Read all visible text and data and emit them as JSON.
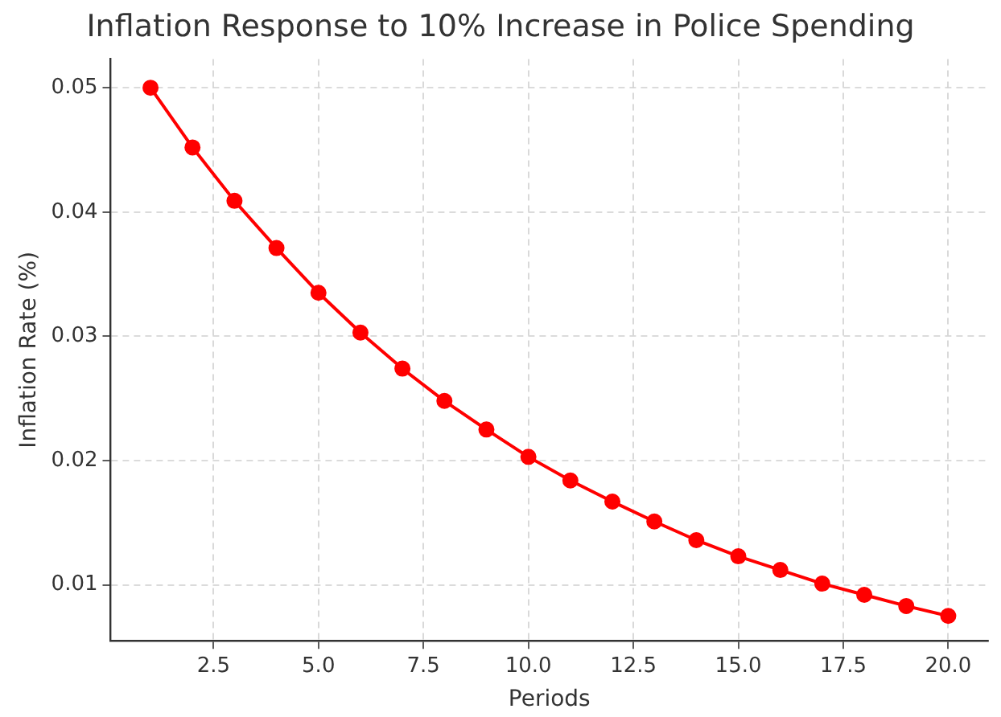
{
  "chart_data": {
    "type": "line",
    "title": "Inflation Response to 10% Increase in Police Spending",
    "xlabel": "Periods",
    "ylabel": "Inflation Rate (%)",
    "x": [
      1,
      2,
      3,
      4,
      5,
      6,
      7,
      8,
      9,
      10,
      11,
      12,
      13,
      14,
      15,
      16,
      17,
      18,
      19,
      20
    ],
    "series": [
      {
        "color": "#ff0000",
        "values": [
          0.05,
          0.0452,
          0.0409,
          0.0371,
          0.0335,
          0.0303,
          0.0274,
          0.0248,
          0.0225,
          0.0203,
          0.0184,
          0.0167,
          0.0151,
          0.0136,
          0.0123,
          0.0112,
          0.0101,
          0.0092,
          0.0083,
          0.0075
        ]
      }
    ],
    "xlim": [
      0.05,
      20.95
    ],
    "xticks": [
      2.5,
      {
        "value": 5,
        "label": "5.0"
      },
      7.5,
      {
        "value": 10,
        "label": "10.0"
      },
      12.5,
      {
        "value": 15,
        "label": "15.0"
      },
      17.5,
      {
        "value": 20,
        "label": "20.0"
      }
    ],
    "ylim": [
      0.0055,
      0.0523
    ],
    "yticks": [
      0.01,
      0.02,
      0.03,
      0.04,
      0.05
    ],
    "grid": true,
    "legend": false,
    "marker": "circle",
    "line_style": "solid"
  }
}
